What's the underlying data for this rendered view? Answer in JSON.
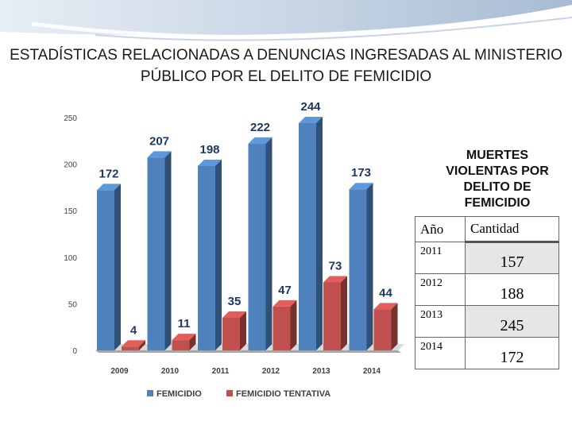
{
  "title": "ESTADÍSTICAS RELACIONADAS A DENUNCIAS INGRESADAS AL MINISTERIO PÚBLICO POR EL DELITO DE FEMICIDIO",
  "colors": {
    "femicidio": "#4f81bd",
    "tentativa": "#c0504d",
    "label": "#1f3864"
  },
  "chart_data": {
    "type": "bar",
    "categories": [
      "2009",
      "2010",
      "2011",
      "2012",
      "2013",
      "2014"
    ],
    "series": [
      {
        "name": "FEMICIDIO",
        "values": [
          172,
          207,
          198,
          222,
          244,
          173
        ]
      },
      {
        "name": "FEMICIDIO TENTATIVA",
        "values": [
          4,
          11,
          35,
          47,
          73,
          44
        ]
      }
    ],
    "y_ticks": [
      "0",
      "50",
      "100",
      "150",
      "200",
      "250"
    ],
    "ylim": [
      0,
      250
    ],
    "legend_position": "bottom"
  },
  "side_table": {
    "title": "MUERTES VIOLENTAS POR DELITO DE FEMICIDIO",
    "headers": {
      "year": "Año",
      "qty": "Cantidad"
    },
    "rows": [
      {
        "year": "2011",
        "qty": "157"
      },
      {
        "year": "2012",
        "qty": "188"
      },
      {
        "year": "2013",
        "qty": "245"
      },
      {
        "year": "2014",
        "qty": "172"
      }
    ]
  }
}
